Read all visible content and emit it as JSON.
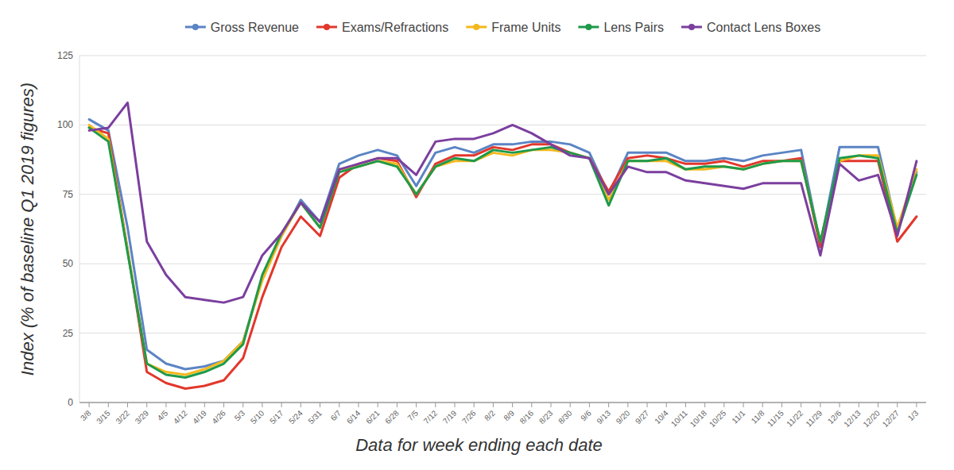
{
  "chart_data": {
    "type": "line",
    "y_label": "Index (% of baseline Q1 2019 figures)",
    "x_label": "Data for week ending each date",
    "categories": [
      "3/8",
      "3/15",
      "3/22",
      "3/29",
      "4/5",
      "4/12",
      "4/19",
      "4/26",
      "5/3",
      "5/10",
      "5/17",
      "5/24",
      "5/31",
      "6/7",
      "6/14",
      "6/21",
      "6/28",
      "7/5",
      "7/12",
      "7/19",
      "7/26",
      "8/2",
      "8/9",
      "8/16",
      "8/23",
      "8/30",
      "9/6",
      "9/13",
      "9/20",
      "9/27",
      "10/4",
      "10/11",
      "10/18",
      "10/25",
      "11/1",
      "11/8",
      "11/15",
      "11/22",
      "11/29",
      "12/6",
      "12/13",
      "12/20",
      "12/27",
      "1/3"
    ],
    "series": [
      {
        "name": "Gross Revenue",
        "color": "#5b84c4",
        "values": [
          102,
          98,
          63,
          19,
          14,
          12,
          13,
          15,
          22,
          45,
          60,
          73,
          65,
          86,
          89,
          91,
          89,
          78,
          90,
          92,
          90,
          93,
          93,
          94,
          94,
          93,
          90,
          75,
          90,
          90,
          90,
          87,
          87,
          88,
          87,
          89,
          90,
          91,
          57,
          92,
          92,
          92,
          62,
          83
        ]
      },
      {
        "name": "Exams/Refractions",
        "color": "#e2372c",
        "values": [
          99,
          97,
          55,
          11,
          7,
          5,
          6,
          8,
          16,
          38,
          56,
          67,
          60,
          81,
          86,
          88,
          87,
          74,
          86,
          89,
          89,
          92,
          91,
          93,
          93,
          90,
          88,
          76,
          88,
          89,
          88,
          86,
          86,
          87,
          85,
          87,
          87,
          88,
          56,
          87,
          87,
          87,
          58,
          67
        ]
      },
      {
        "name": "Frame Units",
        "color": "#f4b81d",
        "values": [
          100,
          95,
          55,
          14,
          11,
          10,
          12,
          15,
          22,
          44,
          60,
          72,
          63,
          84,
          85,
          87,
          86,
          75,
          85,
          87,
          87,
          90,
          89,
          91,
          91,
          90,
          88,
          73,
          87,
          87,
          87,
          84,
          84,
          85,
          84,
          86,
          87,
          87,
          58,
          87,
          89,
          89,
          63,
          84
        ]
      },
      {
        "name": "Lens Pairs",
        "color": "#1e9a4a",
        "values": [
          99,
          94,
          54,
          14,
          10,
          9,
          11,
          14,
          21,
          46,
          61,
          72,
          63,
          83,
          85,
          87,
          85,
          75,
          85,
          88,
          87,
          91,
          90,
          91,
          92,
          90,
          88,
          71,
          87,
          87,
          88,
          84,
          85,
          85,
          84,
          86,
          87,
          87,
          58,
          88,
          89,
          88,
          61,
          82
        ]
      },
      {
        "name": "Contact Lens Boxes",
        "color": "#7b3f9e",
        "values": [
          98,
          99,
          108,
          58,
          46,
          38,
          37,
          36,
          38,
          53,
          61,
          72,
          65,
          84,
          86,
          88,
          88,
          82,
          94,
          95,
          95,
          97,
          100,
          97,
          93,
          89,
          88,
          75,
          85,
          83,
          83,
          80,
          79,
          78,
          77,
          79,
          79,
          79,
          53,
          86,
          80,
          82,
          60,
          87
        ]
      }
    ],
    "ylim": [
      0,
      125
    ],
    "yticks": [
      0,
      25,
      50,
      75,
      100,
      125
    ],
    "grid": true,
    "legend": "top"
  }
}
